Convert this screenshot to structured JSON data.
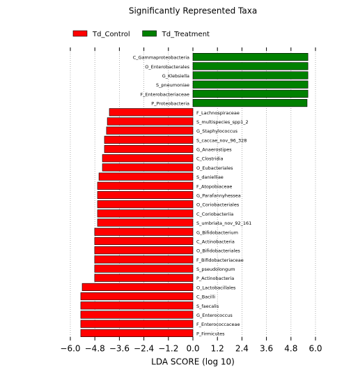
{
  "chart_data": {
    "type": "barh",
    "title": "Significantly Represented Taxa",
    "xlabel": "LDA SCORE (log 10)",
    "categories": [
      "C_Gammaproteobacteria",
      "O_Enterobacterales",
      "G_Klebsiella",
      "S_pneumoniae",
      "F_Enterobacteriaceae",
      "P_Proteobacteria",
      "F_Lachnospiraceae",
      "S_multispecies_spp1_2",
      "G_Staphylococcus",
      "S_caccae_nov_96_328",
      "G_Anaerostipes",
      "C_Clostridia",
      "O_Eubacteriales",
      "S_danielliae",
      "F_Atopobiaceae",
      "G_Parafannyhessea",
      "O_Coriobacteriales",
      "C_Coriobacteriia",
      "S_umbriata_nov_92_161",
      "G_Bifidobacterium",
      "C_Actinobacteria",
      "O_Bifidobacteriales",
      "F_Bifidobacteriaceae",
      "S_pseudolongum",
      "P_Actinobacteria",
      "O_Lactobacillales",
      "C_Bacilli",
      "S_faecalis",
      "G_Enterococcus",
      "F_Enterococcaceae",
      "P_Firmicutes"
    ],
    "series": [
      {
        "name": "Td_Control",
        "color": "#ff0000",
        "values": [
          null,
          null,
          null,
          null,
          null,
          null,
          -4.09,
          -4.19,
          -4.23,
          -4.33,
          -4.33,
          -4.43,
          -4.43,
          -4.6,
          -4.67,
          -4.67,
          -4.67,
          -4.67,
          -4.67,
          -4.81,
          -4.81,
          -4.81,
          -4.81,
          -4.81,
          -4.81,
          -5.42,
          -5.49,
          -5.49,
          -5.49,
          -5.49,
          -5.49
        ]
      },
      {
        "name": "Td_Treatment",
        "color": "#008000",
        "values": [
          5.63,
          5.63,
          5.63,
          5.63,
          5.63,
          5.59,
          null,
          null,
          null,
          null,
          null,
          null,
          null,
          null,
          null,
          null,
          null,
          null,
          null,
          null,
          null,
          null,
          null,
          null,
          null,
          null,
          null,
          null,
          null,
          null,
          null
        ]
      }
    ],
    "xlim": [
      -6,
      6
    ],
    "xticks": [
      {
        "value": -6,
        "label": "−6.0"
      },
      {
        "value": -4.8,
        "label": "−4.8"
      },
      {
        "value": -3.6,
        "label": "−3.6"
      },
      {
        "value": -2.4,
        "label": "−2.4"
      },
      {
        "value": -1.2,
        "label": "−1.2"
      },
      {
        "value": 0,
        "label": "0.0"
      },
      1.2,
      2.4,
      3.6,
      4.8,
      {
        "value": 6,
        "label": "6.0"
      }
    ],
    "grid": true
  }
}
